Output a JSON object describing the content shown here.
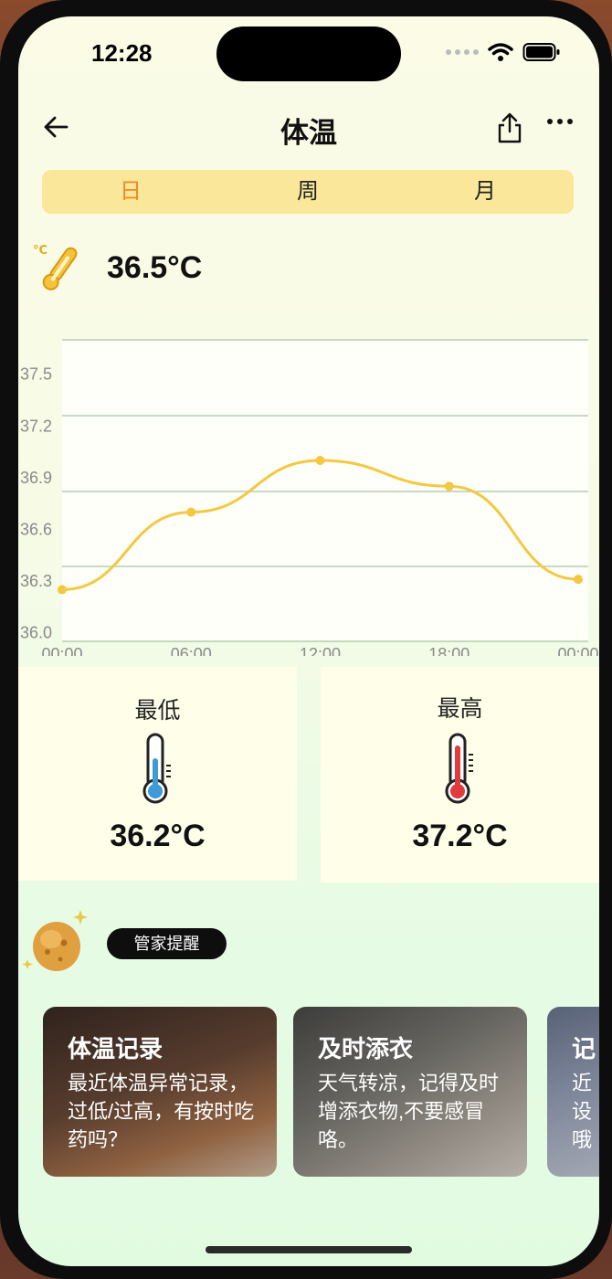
{
  "status": {
    "time": "12:28"
  },
  "nav": {
    "title": "体温"
  },
  "segments": [
    "日",
    "周",
    "月"
  ],
  "active_segment": "日",
  "current_temp": "36.5°C",
  "chart_data": {
    "type": "line",
    "x_ticks": [
      "00:00",
      "06:00",
      "12:00",
      "18:00",
      "00:00"
    ],
    "y_ticks": [
      "37.5",
      "37.2",
      "36.9",
      "36.6",
      "36.3",
      "36.0"
    ],
    "ylim": [
      35.95,
      37.7
    ],
    "points": [
      {
        "x": 0,
        "y": 36.25
      },
      {
        "x": 6,
        "y": 36.7
      },
      {
        "x": 12,
        "y": 37.0
      },
      {
        "x": 18,
        "y": 36.85
      },
      {
        "x": 24,
        "y": 36.31
      }
    ],
    "line_color": "#f4c842",
    "grid": true
  },
  "summary": {
    "low": {
      "label": "最低",
      "value": "36.2°C",
      "icon": "thermometer-cold-icon"
    },
    "high": {
      "label": "最高",
      "value": "37.2°C",
      "icon": "thermometer-hot-icon"
    }
  },
  "butler": {
    "pill": "管家提醒",
    "icon": "butler-mascot-icon"
  },
  "tips": [
    {
      "title": "体温记录",
      "body": "最近体温异常记录，过低/过高，有按时吃药吗？"
    },
    {
      "title": "及时添衣",
      "body": "天气转凉，记得及时增添衣物,不要感冒咯。"
    },
    {
      "title": "记",
      "body": "近\n设\n哦"
    }
  ],
  "colors": {
    "accent": "#f08a1e",
    "segment_bg": "#fbe79a",
    "line": "#f4c842"
  }
}
